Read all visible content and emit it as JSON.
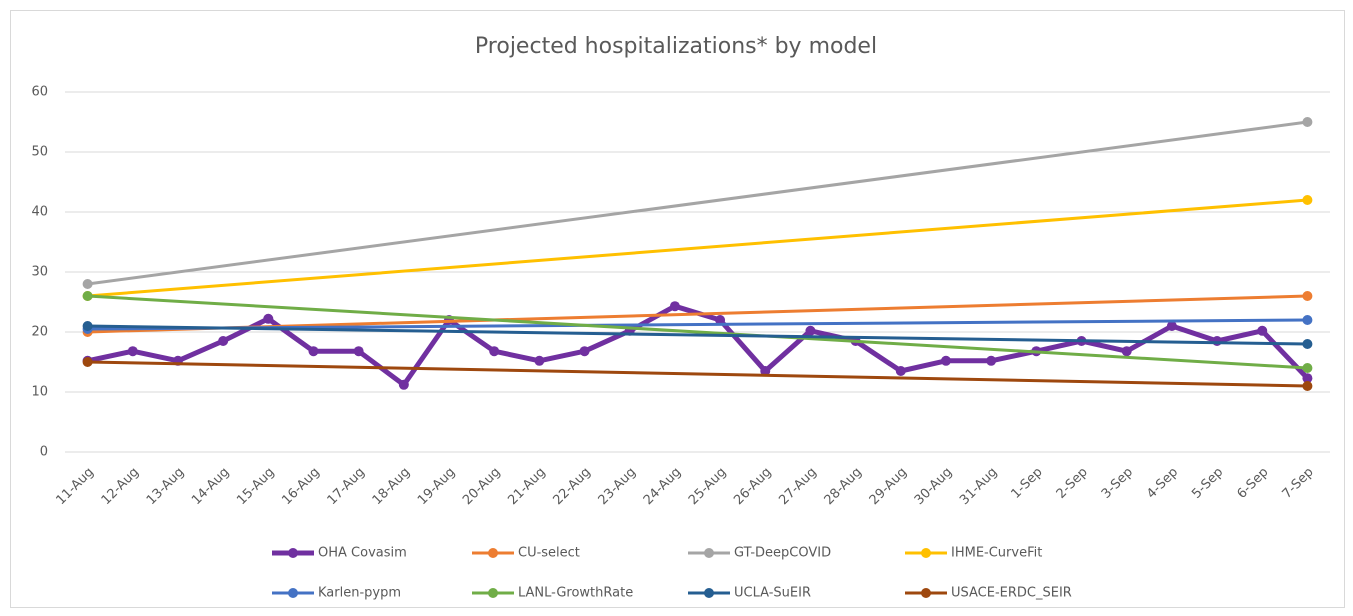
{
  "chart_data": {
    "type": "line",
    "title": "Projected hospitalizations* by model",
    "categories": [
      "11-Aug",
      "12-Aug",
      "13-Aug",
      "14-Aug",
      "15-Aug",
      "16-Aug",
      "17-Aug",
      "18-Aug",
      "19-Aug",
      "20-Aug",
      "21-Aug",
      "22-Aug",
      "23-Aug",
      "24-Aug",
      "25-Aug",
      "26-Aug",
      "27-Aug",
      "28-Aug",
      "29-Aug",
      "30-Aug",
      "31-Aug",
      "1-Sep",
      "2-Sep",
      "3-Sep",
      "4-Sep",
      "5-Sep",
      "6-Sep",
      "7-Sep"
    ],
    "ylim": [
      0,
      60
    ],
    "yticks": [
      0,
      10,
      20,
      30,
      40,
      50,
      60
    ],
    "grid": true,
    "connect_gaps": true,
    "legend": "bottom",
    "series": [
      {
        "name": "OHA Covasim",
        "color": "#7030a0",
        "values": [
          15.2,
          16.8,
          15.2,
          18.5,
          22.2,
          16.8,
          16.8,
          11.2,
          22,
          16.8,
          15.2,
          16.8,
          20.2,
          24.3,
          22,
          13.5,
          20.2,
          18.5,
          13.5,
          15.2,
          15.2,
          16.8,
          18.5,
          16.8,
          21,
          18.5,
          20.2,
          12.3
        ]
      },
      {
        "name": "CU-select",
        "color": "#ed7d31",
        "values": [
          20,
          null,
          null,
          null,
          null,
          null,
          null,
          null,
          null,
          null,
          null,
          null,
          null,
          null,
          null,
          null,
          null,
          null,
          null,
          null,
          null,
          null,
          null,
          null,
          null,
          null,
          null,
          26
        ]
      },
      {
        "name": "GT-DeepCOVID",
        "color": "#a5a5a5",
        "values": [
          28,
          null,
          null,
          null,
          null,
          null,
          null,
          null,
          null,
          null,
          null,
          null,
          null,
          null,
          null,
          null,
          null,
          null,
          null,
          null,
          null,
          null,
          null,
          null,
          null,
          null,
          null,
          55
        ]
      },
      {
        "name": "IHME-CurveFit",
        "color": "#ffc000",
        "values": [
          26,
          null,
          null,
          null,
          null,
          null,
          null,
          null,
          null,
          null,
          null,
          null,
          null,
          null,
          null,
          null,
          null,
          null,
          null,
          null,
          null,
          null,
          null,
          null,
          null,
          null,
          null,
          42
        ]
      },
      {
        "name": "Karlen-pypm",
        "color": "#4472c4",
        "values": [
          20.5,
          null,
          null,
          null,
          null,
          null,
          null,
          null,
          null,
          null,
          null,
          null,
          null,
          null,
          null,
          null,
          null,
          null,
          null,
          null,
          null,
          null,
          null,
          null,
          null,
          null,
          null,
          22
        ]
      },
      {
        "name": "LANL-GrowthRate",
        "color": "#70ad47",
        "values": [
          26,
          null,
          null,
          null,
          null,
          null,
          null,
          null,
          null,
          null,
          null,
          null,
          null,
          null,
          null,
          null,
          null,
          null,
          null,
          null,
          null,
          null,
          null,
          null,
          null,
          null,
          null,
          14
        ]
      },
      {
        "name": "UCLA-SuEIR",
        "color": "#255e91",
        "values": [
          21,
          null,
          null,
          null,
          null,
          null,
          null,
          null,
          null,
          null,
          null,
          null,
          null,
          null,
          null,
          null,
          null,
          null,
          null,
          null,
          null,
          null,
          null,
          null,
          null,
          null,
          null,
          18
        ]
      },
      {
        "name": "USACE-ERDC_SEIR",
        "color": "#9e480e",
        "values": [
          15,
          null,
          null,
          null,
          null,
          null,
          null,
          null,
          null,
          null,
          null,
          null,
          null,
          null,
          null,
          null,
          null,
          null,
          null,
          null,
          null,
          null,
          null,
          null,
          null,
          null,
          null,
          11
        ]
      }
    ]
  }
}
